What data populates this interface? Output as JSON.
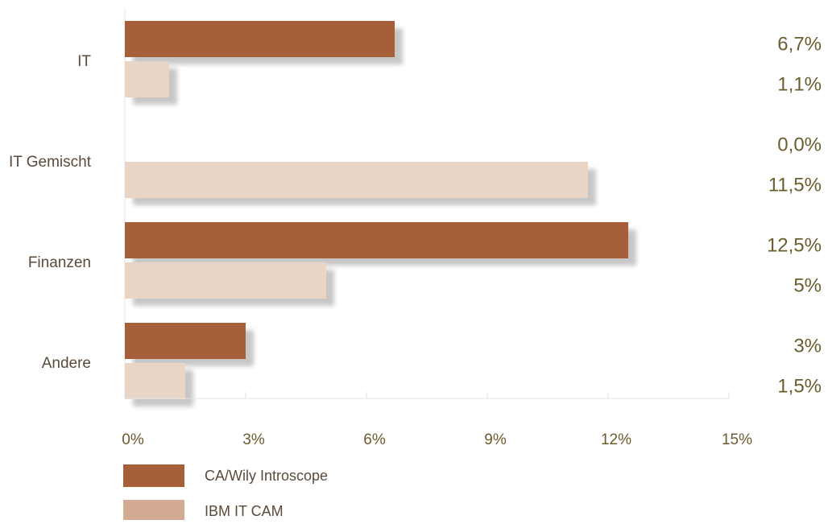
{
  "chart_data": {
    "type": "bar",
    "orientation": "horizontal",
    "categories": [
      "IT",
      "IT Gemischt",
      "Finanzen",
      "Andere"
    ],
    "series": [
      {
        "name": "CA/Wily Introscope",
        "values": [
          6.7,
          0.0,
          12.5,
          3.0
        ],
        "labels": [
          "6,7%",
          "0,0%",
          "12,5%",
          "3%"
        ],
        "color": "#a65f38"
      },
      {
        "name": "IBM IT CAM",
        "values": [
          1.1,
          11.5,
          5.0,
          1.5
        ],
        "labels": [
          "1,1%",
          "11,5%",
          "5%",
          "1,5%"
        ],
        "color": "#e8d5c6",
        "legend_color": "#d2ab92"
      }
    ],
    "xlim": [
      0,
      15
    ],
    "xticks": [
      0,
      3,
      6,
      9,
      12,
      15
    ],
    "xtick_labels": [
      "0%",
      "3%",
      "6%",
      "9%",
      "12%",
      "15%"
    ],
    "title": "",
    "xlabel": "",
    "ylabel": "",
    "grid": false,
    "legend": "bottom-left"
  }
}
